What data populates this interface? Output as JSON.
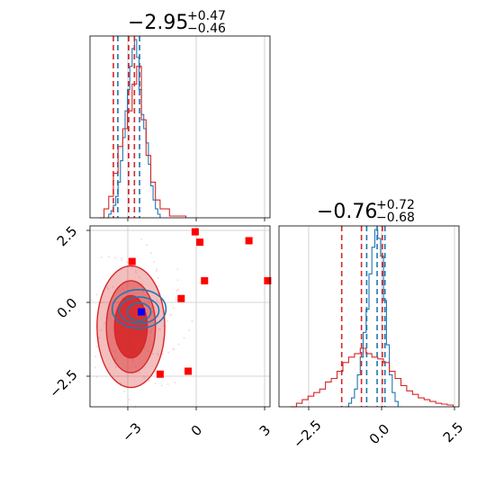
{
  "colors": {
    "blue": "#1f77b4",
    "red": "#d62728",
    "marker_red": "#ff0000",
    "marker_blue": "#0000ff",
    "grid": "#c8c8c8"
  },
  "chart_data": [
    {
      "type": "histogram",
      "panel": "top-left",
      "title": {
        "main": "−2.95",
        "sup": "+0.47",
        "sub": "−0.46"
      },
      "xlim": [
        -4.6,
        3.1
      ],
      "series": [
        {
          "name": "",
          "color": "blue",
          "quantiles": [
            -3.41,
            -2.95,
            -2.48
          ],
          "bins": [
            [
              -3.9,
              0
            ],
            [
              -3.8,
              0.02
            ],
            [
              -3.7,
              0.04
            ],
            [
              -3.6,
              0.07
            ],
            [
              -3.5,
              0.12
            ],
            [
              -3.4,
              0.2
            ],
            [
              -3.3,
              0.32
            ],
            [
              -3.2,
              0.45
            ],
            [
              -3.1,
              0.6
            ],
            [
              -3.0,
              0.72
            ],
            [
              -2.9,
              0.85
            ],
            [
              -2.8,
              0.95
            ],
            [
              -2.7,
              1.0
            ],
            [
              -2.6,
              0.9
            ],
            [
              -2.5,
              0.72
            ],
            [
              -2.4,
              0.58
            ],
            [
              -2.3,
              0.5
            ],
            [
              -2.2,
              0.42
            ],
            [
              -2.1,
              0.3
            ],
            [
              -2.0,
              0.18
            ],
            [
              -1.9,
              0.1
            ],
            [
              -1.8,
              0.05
            ],
            [
              -1.7,
              0.02
            ],
            [
              -1.6,
              0
            ]
          ]
        },
        {
          "name": "",
          "color": "red",
          "quantiles": [
            -3.6,
            -2.95,
            -2.7
          ],
          "bins": [
            [
              -4.2,
              0
            ],
            [
              -4.0,
              0.05
            ],
            [
              -3.8,
              0.12
            ],
            [
              -3.6,
              0.25
            ],
            [
              -3.4,
              0.4
            ],
            [
              -3.2,
              0.5
            ],
            [
              -3.0,
              0.6
            ],
            [
              -2.8,
              0.75
            ],
            [
              -2.6,
              0.85
            ],
            [
              -2.4,
              0.55
            ],
            [
              -2.2,
              0.35
            ],
            [
              -2.0,
              0.2
            ],
            [
              -1.8,
              0.1
            ],
            [
              -1.6,
              0.05
            ],
            [
              -1.2,
              0.01
            ],
            [
              -0.5,
              0
            ]
          ]
        }
      ]
    },
    {
      "type": "scatter",
      "panel": "bottom-left",
      "xlim": [
        -4.6,
        3.1
      ],
      "ylim": [
        -3.5,
        2.6
      ],
      "x_ticks": [
        "−3",
        "0",
        "3"
      ],
      "x_tick_values": [
        -3,
        0,
        3
      ],
      "y_ticks": [
        "2.5",
        "0.0",
        "−2.5"
      ],
      "y_tick_values": [
        2.5,
        0.0,
        -2.5
      ],
      "red_points": [
        [
          -0.1,
          2.4
        ],
        [
          0.1,
          2.05
        ],
        [
          2.2,
          2.1
        ],
        [
          -2.8,
          1.4
        ],
        [
          0.3,
          0.75
        ],
        [
          3.0,
          0.75
        ],
        [
          -0.7,
          0.15
        ],
        [
          -1.6,
          -2.4
        ],
        [
          -0.4,
          -2.3
        ],
        [
          -2.4,
          -0.3
        ]
      ],
      "blue_point": [
        -2.4,
        -0.3
      ],
      "red_contours": [
        {
          "cx": -2.85,
          "cy": -0.8,
          "rx": 1.45,
          "ry": 2.05,
          "fill": 0.3
        },
        {
          "cx": -2.85,
          "cy": -0.8,
          "rx": 1.05,
          "ry": 1.55,
          "fill": 0.45
        },
        {
          "cx": -2.85,
          "cy": -0.8,
          "rx": 0.7,
          "ry": 1.05,
          "fill": 0.9
        }
      ],
      "blue_contours": [
        {
          "cx": -2.5,
          "cy": -0.2,
          "rx": 1.15,
          "ry": 0.65
        },
        {
          "cx": -2.5,
          "cy": -0.25,
          "rx": 0.85,
          "ry": 0.45
        },
        {
          "cx": -2.5,
          "cy": -0.3,
          "rx": 0.5,
          "ry": 0.3
        }
      ]
    },
    {
      "type": "histogram",
      "panel": "bottom-right",
      "title": {
        "main": "−0.76",
        "sup": "+0.72",
        "sub": "−0.68"
      },
      "xlim": [
        -3.6,
        2.6
      ],
      "x_ticks": [
        "−2.5",
        "0.0",
        "2.5"
      ],
      "x_tick_values": [
        -2.5,
        0.0,
        2.5
      ],
      "series": [
        {
          "name": "",
          "color": "blue",
          "quantiles": [
            -0.58,
            -0.22,
            0.05
          ],
          "bins": [
            [
              -1.3,
              0
            ],
            [
              -1.2,
              0.02
            ],
            [
              -1.1,
              0.05
            ],
            [
              -1.0,
              0.1
            ],
            [
              -0.9,
              0.18
            ],
            [
              -0.8,
              0.28
            ],
            [
              -0.7,
              0.42
            ],
            [
              -0.6,
              0.55
            ],
            [
              -0.5,
              0.75
            ],
            [
              -0.4,
              0.9
            ],
            [
              -0.3,
              1.0
            ],
            [
              -0.2,
              0.95
            ],
            [
              -0.1,
              0.85
            ],
            [
              0.0,
              0.6
            ],
            [
              0.1,
              0.35
            ],
            [
              0.2,
              0.18
            ],
            [
              0.3,
              0.08
            ],
            [
              0.4,
              0.03
            ],
            [
              0.5,
              0
            ]
          ]
        },
        {
          "name": "",
          "color": "red",
          "quantiles": [
            -1.44,
            -0.76,
            -0.04
          ],
          "bins": [
            [
              -3.2,
              0
            ],
            [
              -3.0,
              0.02
            ],
            [
              -2.8,
              0.04
            ],
            [
              -2.6,
              0.06
            ],
            [
              -2.4,
              0.08
            ],
            [
              -2.2,
              0.1
            ],
            [
              -2.0,
              0.14
            ],
            [
              -1.8,
              0.16
            ],
            [
              -1.6,
              0.2
            ],
            [
              -1.4,
              0.25
            ],
            [
              -1.2,
              0.28
            ],
            [
              -1.0,
              0.3
            ],
            [
              -0.8,
              0.33
            ],
            [
              -0.6,
              0.3
            ],
            [
              -0.4,
              0.28
            ],
            [
              -0.2,
              0.27
            ],
            [
              0.0,
              0.25
            ],
            [
              0.2,
              0.2
            ],
            [
              0.4,
              0.16
            ],
            [
              0.6,
              0.12
            ],
            [
              0.8,
              0.09
            ],
            [
              1.0,
              0.07
            ],
            [
              1.2,
              0.05
            ],
            [
              1.4,
              0.04
            ],
            [
              1.6,
              0.03
            ],
            [
              1.8,
              0.02
            ],
            [
              2.0,
              0.015
            ],
            [
              2.2,
              0.01
            ],
            [
              2.4,
              0
            ]
          ]
        }
      ]
    }
  ]
}
